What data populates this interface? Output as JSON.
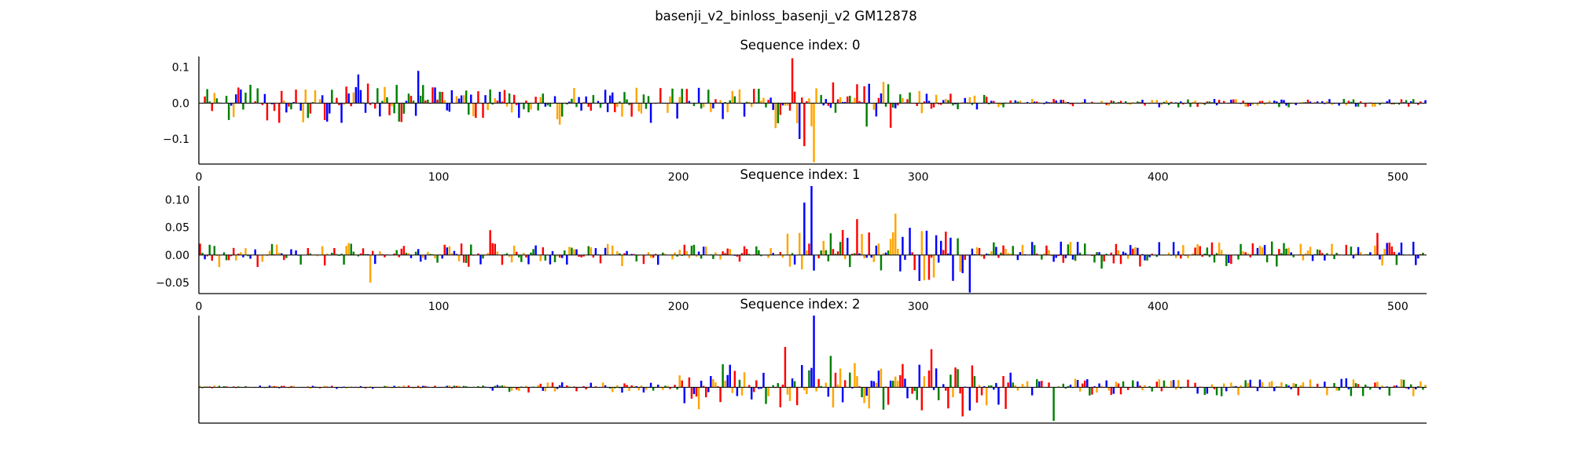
{
  "figure_title": "basenji_v2_binloss_basenji_v2 GM12878",
  "colors": {
    "A": "#008000",
    "C": "#0000ff",
    "G": "#ffa500",
    "T": "#ff0000",
    "axis": "#000000",
    "background": "#ffffff"
  },
  "chart_data": [
    {
      "type": "sequence-logo",
      "title": "Sequence index: 0",
      "xlim": [
        0,
        512
      ],
      "ylim": [
        -0.17,
        0.13
      ],
      "x_ticks": [
        0,
        100,
        200,
        300,
        400,
        500
      ],
      "y_ticks": [
        0.1,
        0.0,
        -0.1
      ],
      "y_tick_labels": [
        "0.1",
        "0.0",
        "−0.1"
      ],
      "regions": [
        {
          "x": [
            0,
            95
          ],
          "amp": 0.055
        },
        {
          "x": [
            95,
            235
          ],
          "amp": 0.045
        },
        {
          "x": [
            235,
            290
          ],
          "amp": 0.07
        },
        {
          "x": [
            290,
            330
          ],
          "amp": 0.035
        },
        {
          "x": [
            330,
            512
          ],
          "amp": 0.012
        }
      ],
      "peaks": [
        {
          "x": 247,
          "value": 0.125,
          "base": "T"
        },
        {
          "x": 256,
          "value": -0.165,
          "base": "G"
        },
        {
          "x": 252,
          "value": -0.12,
          "base": "T"
        },
        {
          "x": 250,
          "value": -0.1,
          "base": "C"
        },
        {
          "x": 91,
          "value": 0.09,
          "base": "C"
        },
        {
          "x": 66,
          "value": 0.08,
          "base": "C"
        },
        {
          "x": 59,
          "value": -0.055,
          "base": "C"
        },
        {
          "x": 188,
          "value": -0.055,
          "base": "C"
        },
        {
          "x": 150,
          "value": -0.06,
          "base": "G"
        }
      ]
    },
    {
      "type": "sequence-logo",
      "title": "Sequence index: 1",
      "xlim": [
        0,
        512
      ],
      "ylim": [
        -0.07,
        0.125
      ],
      "x_ticks": [
        0,
        100,
        200,
        300,
        400,
        500
      ],
      "y_ticks": [
        0.1,
        0.05,
        0.0,
        -0.05
      ],
      "y_tick_labels": [
        "0.10",
        "0.05",
        "0.00",
        "−0.05"
      ],
      "regions": [
        {
          "x": [
            0,
            240
          ],
          "amp": 0.022
        },
        {
          "x": [
            240,
            320
          ],
          "amp": 0.05
        },
        {
          "x": [
            320,
            512
          ],
          "amp": 0.025
        }
      ],
      "peaks": [
        {
          "x": 255,
          "value": 0.125,
          "base": "C"
        },
        {
          "x": 252,
          "value": 0.095,
          "base": "C"
        },
        {
          "x": 274,
          "value": 0.065,
          "base": "T"
        },
        {
          "x": 290,
          "value": 0.075,
          "base": "G"
        },
        {
          "x": 321,
          "value": -0.068,
          "base": "C"
        },
        {
          "x": 304,
          "value": -0.045,
          "base": "T"
        },
        {
          "x": 71,
          "value": -0.05,
          "base": "G"
        },
        {
          "x": 121,
          "value": 0.045,
          "base": "T"
        },
        {
          "x": 491,
          "value": 0.04,
          "base": "T"
        }
      ]
    },
    {
      "type": "sequence-logo",
      "title": "Sequence index: 2",
      "xlim": [
        0,
        512
      ],
      "ylim": [
        -0.08,
        0.16
      ],
      "x_ticks": [],
      "y_ticks": [],
      "regions": [
        {
          "x": [
            0,
            120
          ],
          "amp": 0.004
        },
        {
          "x": [
            120,
            200
          ],
          "amp": 0.012
        },
        {
          "x": [
            200,
            340
          ],
          "amp": 0.055
        },
        {
          "x": [
            340,
            512
          ],
          "amp": 0.02
        }
      ],
      "peaks": [
        {
          "x": 256,
          "value": 0.16,
          "base": "C"
        },
        {
          "x": 244,
          "value": 0.09,
          "base": "T"
        },
        {
          "x": 305,
          "value": 0.085,
          "base": "T"
        },
        {
          "x": 263,
          "value": 0.07,
          "base": "A"
        },
        {
          "x": 318,
          "value": -0.065,
          "base": "T"
        },
        {
          "x": 356,
          "value": -0.075,
          "base": "A"
        },
        {
          "x": 249,
          "value": -0.04,
          "base": "T"
        },
        {
          "x": 285,
          "value": -0.05,
          "base": "A"
        }
      ]
    }
  ]
}
